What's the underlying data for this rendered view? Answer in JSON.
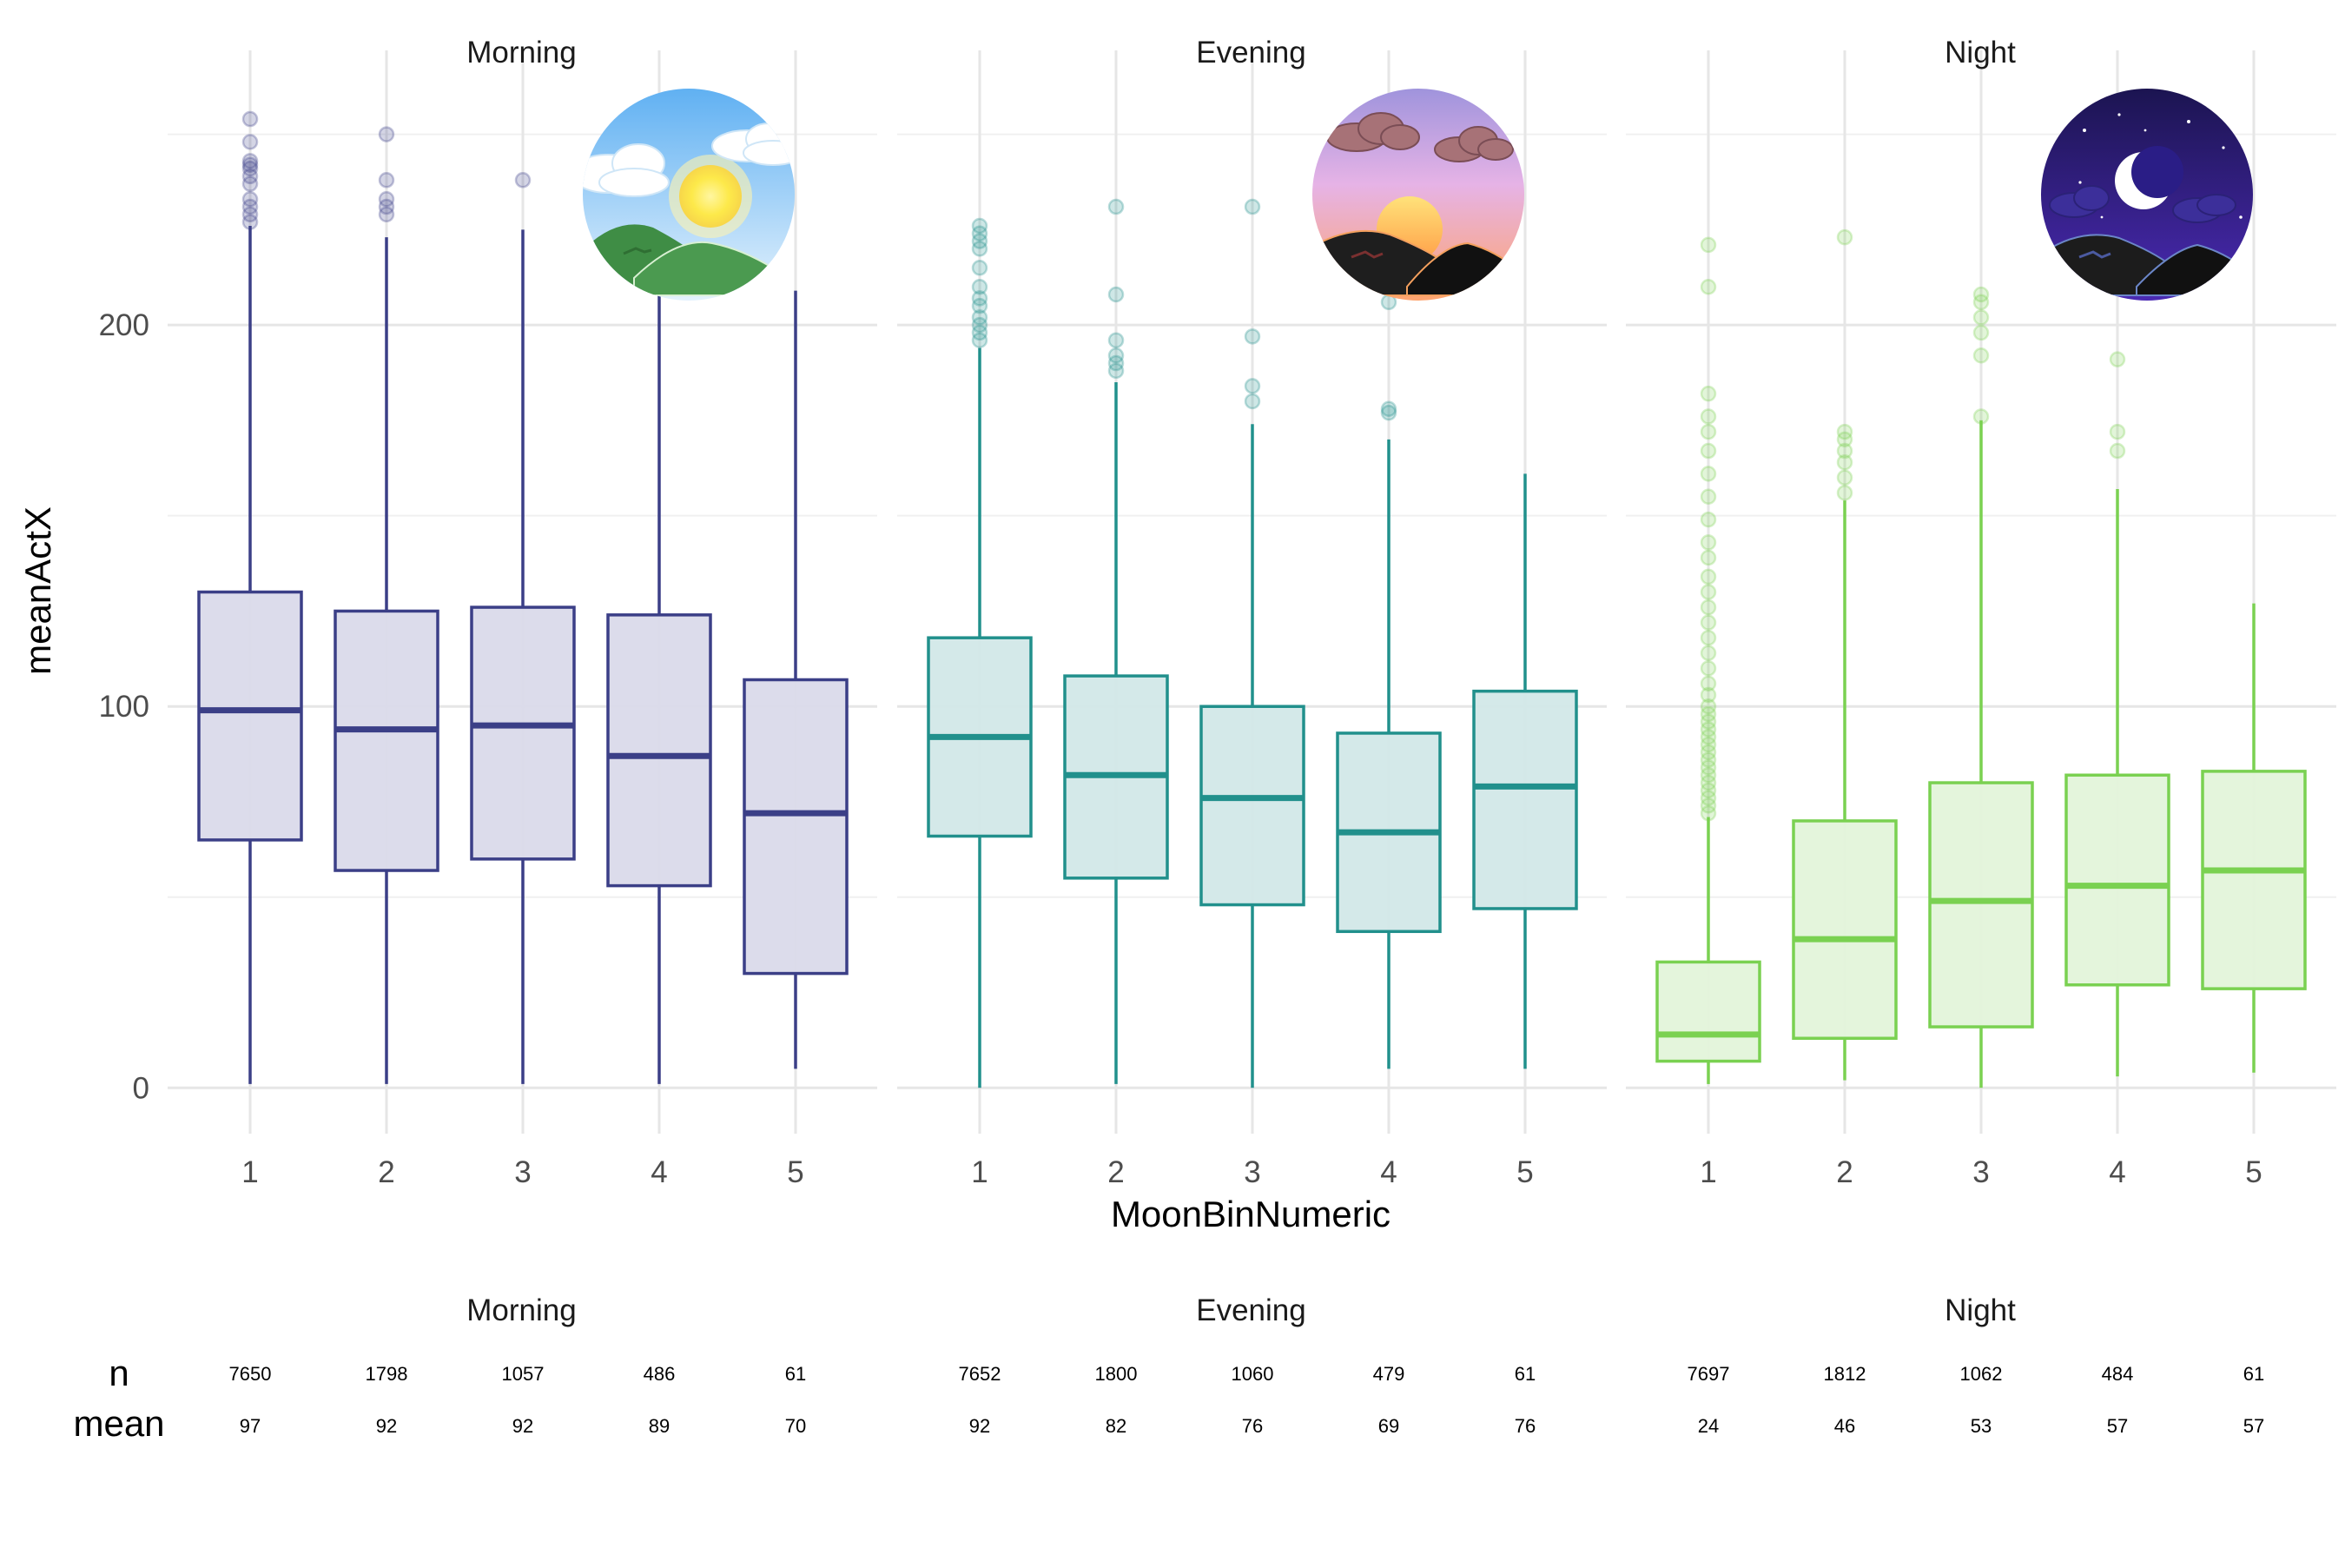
{
  "chart_data": {
    "type": "boxplot",
    "xlabel": "MoonBinNumeric",
    "ylabel": "meanActX",
    "ylim": [
      -12,
      272
    ],
    "yticks": [
      0,
      100,
      200
    ],
    "categories": [
      "1",
      "2",
      "3",
      "4",
      "5"
    ],
    "grid": true,
    "legend": "none",
    "panels": [
      {
        "title": "Morning",
        "color": "#3b3f87",
        "fill": "#dadaea",
        "icon": "sun-mountains-icon",
        "boxes": [
          {
            "x": "1",
            "whisker_low": 1,
            "q1": 65,
            "median": 99,
            "q3": 130,
            "whisker_high": 226,
            "outliers": [
              227,
              229,
              231,
              233,
              237,
              239,
              241,
              242,
              243,
              248,
              254
            ]
          },
          {
            "x": "2",
            "whisker_low": 1,
            "q1": 57,
            "median": 94,
            "q3": 125,
            "whisker_high": 223,
            "outliers": [
              229,
              231,
              233,
              238,
              250
            ]
          },
          {
            "x": "3",
            "whisker_low": 1,
            "q1": 60,
            "median": 95,
            "q3": 126,
            "whisker_high": 225,
            "outliers": [
              238
            ]
          },
          {
            "x": "4",
            "whisker_low": 1,
            "q1": 53,
            "median": 87,
            "q3": 124,
            "whisker_high": 214,
            "outliers": []
          },
          {
            "x": "5",
            "whisker_low": 5,
            "q1": 30,
            "median": 72,
            "q3": 107,
            "whisker_high": 209,
            "outliers": []
          }
        ]
      },
      {
        "title": "Evening",
        "color": "#21908c",
        "fill": "#d2e8e8",
        "icon": "sunset-mountains-icon",
        "boxes": [
          {
            "x": "1",
            "whisker_low": 0,
            "q1": 66,
            "median": 92,
            "q3": 118,
            "whisker_high": 194,
            "outliers": [
              196,
              198,
              200,
              202,
              205,
              207,
              210,
              215,
              220,
              222,
              224,
              226
            ]
          },
          {
            "x": "2",
            "whisker_low": 1,
            "q1": 55,
            "median": 82,
            "q3": 108,
            "whisker_high": 185,
            "outliers": [
              188,
              190,
              192,
              196,
              208,
              231
            ]
          },
          {
            "x": "3",
            "whisker_low": 0,
            "q1": 48,
            "median": 76,
            "q3": 100,
            "whisker_high": 174,
            "outliers": [
              180,
              184,
              197,
              231
            ]
          },
          {
            "x": "4",
            "whisker_low": 5,
            "q1": 41,
            "median": 67,
            "q3": 93,
            "whisker_high": 170,
            "outliers": [
              177,
              178,
              206
            ]
          },
          {
            "x": "5",
            "whisker_low": 5,
            "q1": 47,
            "median": 79,
            "q3": 104,
            "whisker_high": 161,
            "outliers": []
          }
        ]
      },
      {
        "title": "Night",
        "color": "#7ad151",
        "fill": "#e3f4da",
        "icon": "moon-night-icon",
        "boxes": [
          {
            "x": "1",
            "whisker_low": 1,
            "q1": 7,
            "median": 14,
            "q3": 33,
            "whisker_high": 71,
            "outliers": [
              72,
              74,
              76,
              78,
              80,
              82,
              84,
              86,
              88,
              90,
              92,
              94,
              96,
              98,
              100,
              103,
              106,
              110,
              114,
              118,
              122,
              126,
              130,
              134,
              139,
              143,
              149,
              155,
              161,
              167,
              172,
              176,
              182,
              210,
              221
            ]
          },
          {
            "x": "2",
            "whisker_low": 2,
            "q1": 13,
            "median": 39,
            "q3": 70,
            "whisker_high": 154,
            "outliers": [
              156,
              160,
              164,
              167,
              170,
              172,
              223
            ]
          },
          {
            "x": "3",
            "whisker_low": 0,
            "q1": 16,
            "median": 49,
            "q3": 80,
            "whisker_high": 175,
            "outliers": [
              176,
              192,
              198,
              202,
              206,
              208
            ]
          },
          {
            "x": "4",
            "whisker_low": 3,
            "q1": 27,
            "median": 53,
            "q3": 82,
            "whisker_high": 157,
            "outliers": [
              167,
              172,
              191
            ]
          },
          {
            "x": "5",
            "whisker_low": 4,
            "q1": 26,
            "median": 57,
            "q3": 83,
            "whisker_high": 127,
            "outliers": []
          }
        ]
      }
    ],
    "summary_table": {
      "row_labels": [
        "n",
        "mean"
      ],
      "panels": [
        {
          "title": "Morning",
          "n": [
            "7650",
            "1798",
            "1057",
            "486",
            "61"
          ],
          "mean": [
            "97",
            "92",
            "92",
            "89",
            "70"
          ]
        },
        {
          "title": "Evening",
          "n": [
            "7652",
            "1800",
            "1060",
            "479",
            "61"
          ],
          "mean": [
            "92",
            "82",
            "76",
            "69",
            "76"
          ]
        },
        {
          "title": "Night",
          "n": [
            "7697",
            "1812",
            "1062",
            "484",
            "61"
          ],
          "mean": [
            "24",
            "46",
            "53",
            "57",
            "57"
          ]
        }
      ]
    }
  }
}
